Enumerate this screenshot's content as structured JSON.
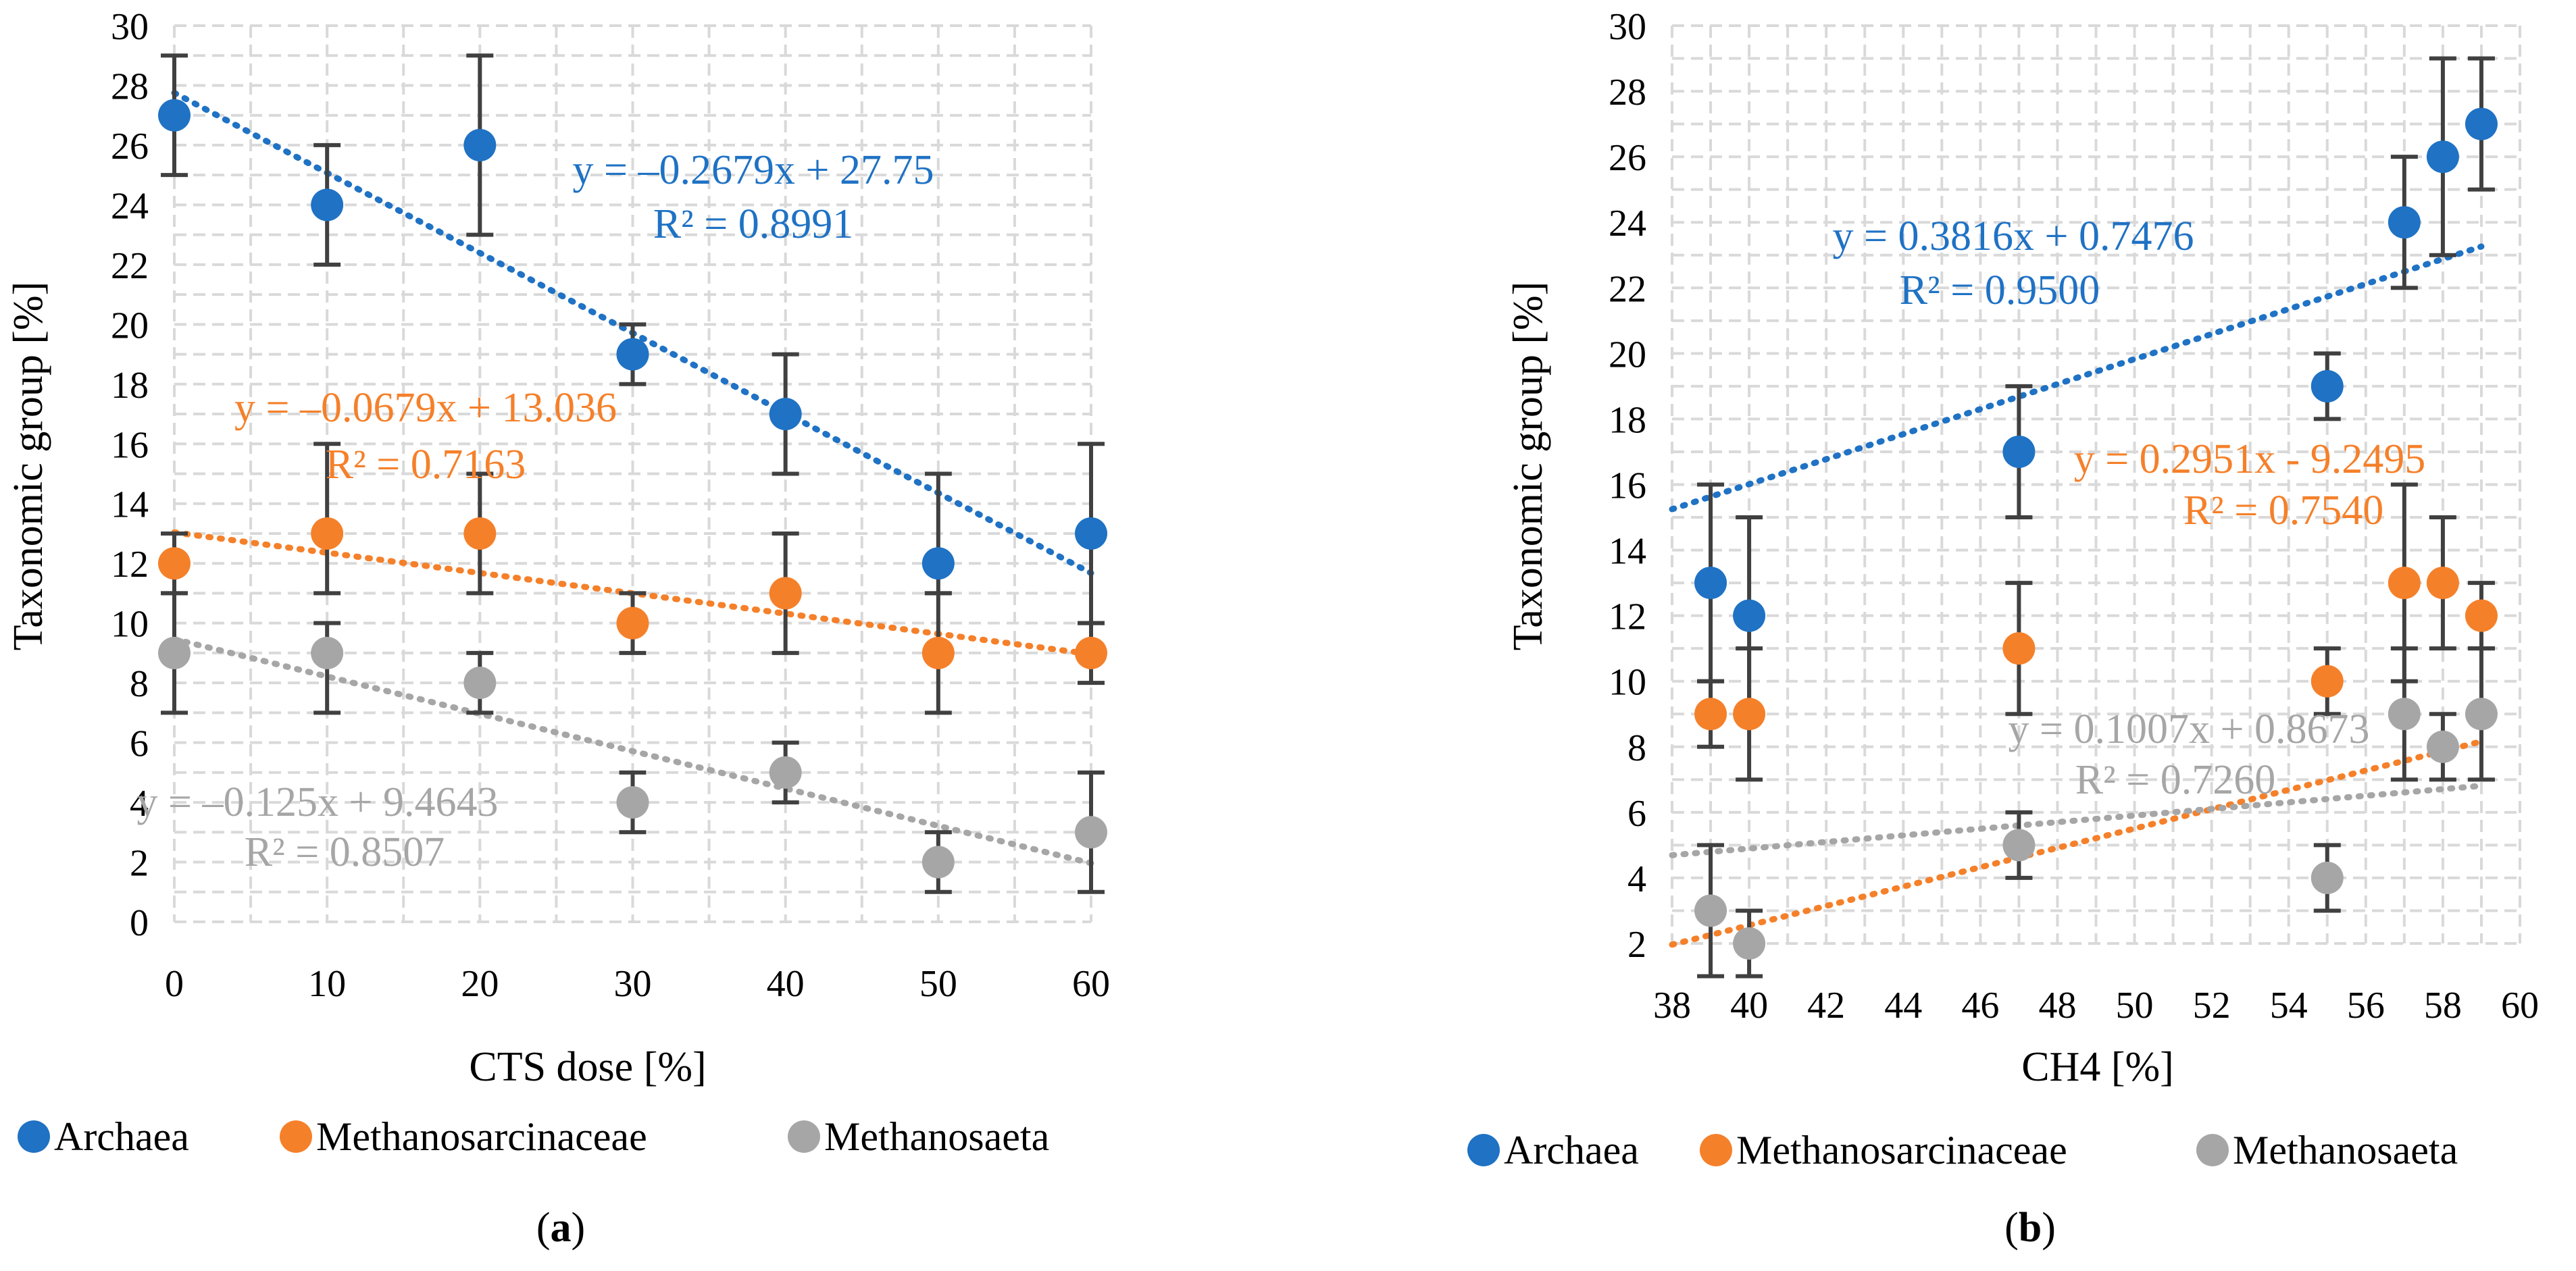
{
  "colors": {
    "archaea": "#1f72c4",
    "methanosarcinaceae": "#f5802a",
    "methanosaeta": "#a6a6a6",
    "errorbar": "#404040",
    "grid": "#d9d9d9"
  },
  "chart_data": [
    {
      "type": "scatter",
      "panel_label": "a",
      "xlabel": "CTS dose [%]",
      "ylabel": "Taxonomic group [%]",
      "xlim": [
        0,
        60
      ],
      "ylim": [
        0,
        30
      ],
      "xticks": [
        "0",
        "10",
        "20",
        "30",
        "40",
        "50",
        "60"
      ],
      "yticks": [
        "0",
        "2",
        "4",
        "6",
        "8",
        "10",
        "12",
        "14",
        "16",
        "18",
        "20",
        "22",
        "24",
        "26",
        "28",
        "30"
      ],
      "series": [
        {
          "name": "Archaea",
          "color_key": "archaea",
          "x": [
            0,
            10,
            20,
            30,
            40,
            50,
            60
          ],
          "y": [
            27,
            24,
            26,
            19,
            17,
            12,
            13
          ],
          "err_low": [
            25,
            22,
            23,
            18,
            15,
            11,
            10
          ],
          "err_high": [
            29,
            26,
            29,
            20,
            19,
            15,
            16
          ],
          "trend": {
            "slope": -0.2679,
            "intercept": 27.75
          },
          "equation": "y = –0.2679x + 27.75",
          "r2": "R² = 0.8991"
        },
        {
          "name": "Methanosarcinaceae",
          "color_key": "methanosarcinaceae",
          "x": [
            0,
            10,
            20,
            30,
            40,
            50,
            60
          ],
          "y": [
            12,
            13,
            13,
            10,
            11,
            9,
            9
          ],
          "err_low": [
            11,
            11,
            11,
            9,
            9,
            7,
            8
          ],
          "err_high": [
            13,
            16,
            15,
            11,
            13,
            11,
            10
          ],
          "trend": {
            "slope": -0.0679,
            "intercept": 13.036
          },
          "equation": "y = –0.0679x + 13.036",
          "r2": "R² = 0.7163"
        },
        {
          "name": "Methanosaeta",
          "color_key": "methanosaeta",
          "x": [
            0,
            10,
            20,
            30,
            40,
            50,
            60
          ],
          "y": [
            9,
            9,
            8,
            4,
            5,
            2,
            3
          ],
          "err_low": [
            7,
            7,
            7,
            3,
            4,
            1,
            1
          ],
          "err_high": [
            11,
            10,
            9,
            5,
            6,
            3,
            5
          ],
          "trend": {
            "slope": -0.125,
            "intercept": 9.4643
          },
          "equation": "y = –0.125x + 9.4643",
          "r2": "R² = 0.8507"
        }
      ],
      "legend": [
        "Archaea",
        "Methanosarcinaceae",
        "Methanosaeta"
      ]
    },
    {
      "type": "scatter",
      "panel_label": "b",
      "xlabel": "CH4 [%]",
      "ylabel": "Taxonomic group [%]",
      "xlim": [
        38,
        60
      ],
      "ylim": [
        2,
        30
      ],
      "xticks": [
        "38",
        "40",
        "42",
        "44",
        "46",
        "48",
        "50",
        "52",
        "54",
        "56",
        "58",
        "60"
      ],
      "yticks": [
        "2",
        "4",
        "6",
        "8",
        "10",
        "12",
        "14",
        "16",
        "18",
        "20",
        "22",
        "24",
        "26",
        "28",
        "30"
      ],
      "series": [
        {
          "name": "Archaea",
          "color_key": "archaea",
          "x": [
            39,
            40,
            47,
            55,
            57,
            58,
            59
          ],
          "y": [
            13,
            12,
            17,
            19,
            24,
            26,
            27
          ],
          "err_low": [
            10,
            9,
            15,
            18,
            22,
            23,
            25
          ],
          "err_high": [
            16,
            15,
            19,
            20,
            26,
            29,
            29
          ],
          "trend": {
            "slope": 0.3816,
            "intercept": 0.7476
          },
          "equation": "y = 0.3816x + 0.7476",
          "r2": "R² = 0.9500"
        },
        {
          "name": "Methanosarcinaceae",
          "color_key": "methanosarcinaceae",
          "x": [
            39,
            40,
            47,
            55,
            57,
            58,
            59
          ],
          "y": [
            9,
            9,
            11,
            10,
            13,
            13,
            12
          ],
          "err_low": [
            8,
            7,
            9,
            9,
            10,
            11,
            11
          ],
          "err_high": [
            10,
            11,
            13,
            11,
            16,
            15,
            13
          ],
          "trend": {
            "slope": 0.2951,
            "intercept": -9.2495
          },
          "equation": "y = 0.2951x - 9.2495",
          "r2": "R² = 0.7540"
        },
        {
          "name": "Methanosaeta",
          "color_key": "methanosaeta",
          "x": [
            39,
            40,
            47,
            55,
            57,
            58,
            59
          ],
          "y": [
            3,
            2,
            5,
            4,
            9,
            8,
            9
          ],
          "err_low": [
            1,
            1,
            4,
            3,
            7,
            7,
            7
          ],
          "err_high": [
            5,
            3,
            6,
            5,
            11,
            9,
            11
          ],
          "trend": {
            "slope": 0.1007,
            "intercept": 0.8673
          },
          "equation": "y = 0.1007x + 0.8673",
          "r2": "R² = 0.7260"
        }
      ],
      "legend": [
        "Archaea",
        "Methanosarcinaceae",
        "Methanosaeta"
      ]
    }
  ]
}
